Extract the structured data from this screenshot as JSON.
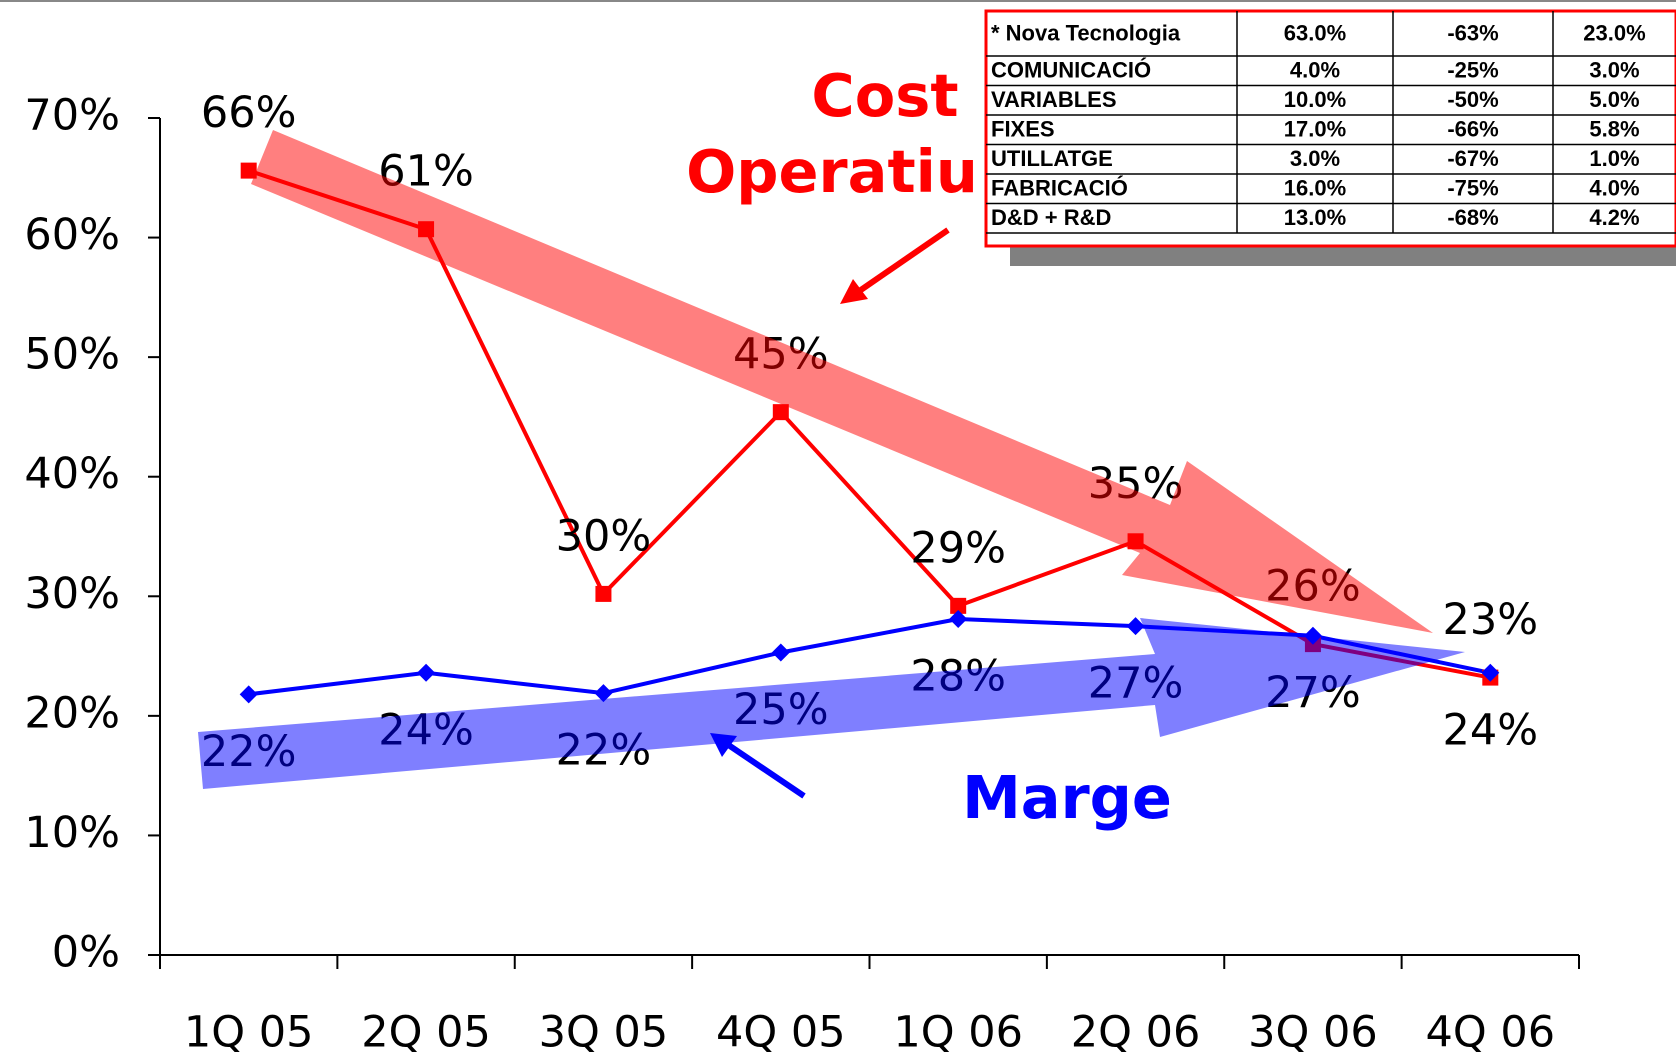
{
  "chart_data": {
    "type": "line",
    "categories": [
      "1Q 05",
      "2Q 05",
      "3Q 05",
      "4Q 05",
      "1Q 06",
      "2Q 06",
      "3Q 06",
      "4Q 06"
    ],
    "series": [
      {
        "name": "Cost Operatiu",
        "color": "#ff0000",
        "marker": "square",
        "values": [
          65.6,
          60.7,
          30.2,
          45.4,
          29.2,
          34.6,
          26.0,
          23.2
        ],
        "value_labels": [
          "66%",
          "61%",
          "30%",
          "45%",
          "29%",
          "35%",
          "26%",
          "23%"
        ]
      },
      {
        "name": "Marge",
        "color": "#0000ff",
        "marker": "diamond",
        "values": [
          21.8,
          23.6,
          21.9,
          25.3,
          28.1,
          27.5,
          26.7,
          23.6
        ],
        "value_labels": [
          "22%",
          "24%",
          "22%",
          "25%",
          "28%",
          "27%",
          "27%",
          "24%"
        ]
      }
    ],
    "ylim": [
      0,
      70
    ],
    "yticks": [
      {
        "value": 0,
        "label": "0%"
      },
      {
        "value": 10,
        "label": "10%"
      },
      {
        "value": 20,
        "label": "20%"
      },
      {
        "value": 30,
        "label": "30%"
      },
      {
        "value": 40,
        "label": "40%"
      },
      {
        "value": 50,
        "label": "50%"
      },
      {
        "value": 60,
        "label": "60%"
      },
      {
        "value": 70,
        "label": "70%"
      }
    ],
    "grid": false
  },
  "table": {
    "rows": [
      [
        "* Nova Tecnologia",
        "63.0%",
        "-63%",
        "23.0%"
      ],
      [
        "COMUNICACIÓ",
        "4.0%",
        "-25%",
        "3.0%"
      ],
      [
        "VARIABLES",
        "10.0%",
        "-50%",
        "5.0%"
      ],
      [
        "FIXES",
        "17.0%",
        "-66%",
        "5.8%"
      ],
      [
        "UTILLATGE",
        "3.0%",
        "-67%",
        "1.0%"
      ],
      [
        "FABRICACIÓ",
        "16.0%",
        "-75%",
        "4.0%"
      ],
      [
        "D&D + R&D",
        "13.0%",
        "-68%",
        "4.2%"
      ]
    ]
  }
}
